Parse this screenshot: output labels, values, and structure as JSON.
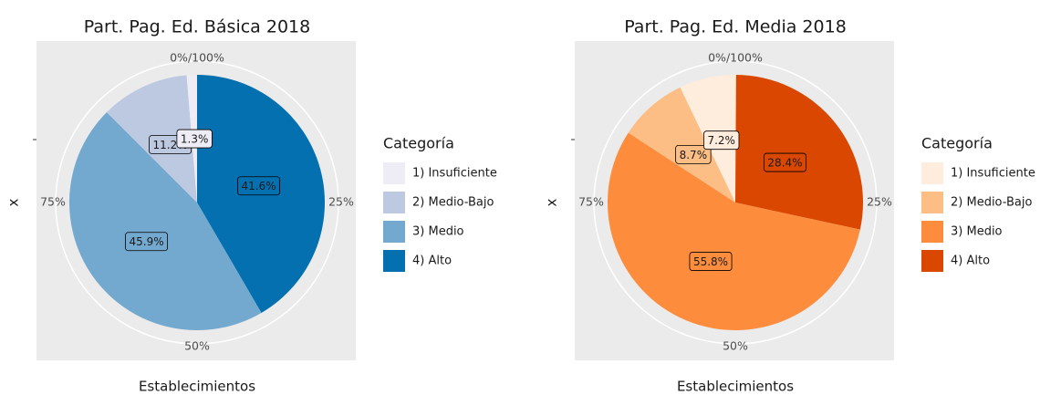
{
  "chart_data": [
    {
      "type": "pie",
      "title": "Part. Pag. Ed. Básica 2018",
      "xlabel": "Establecimientos",
      "ylabel": "x",
      "legend_title": "Categoría",
      "categories": [
        "1) Insuficiente",
        "2) Medio-Bajo",
        "3) Medio",
        "4) Alto"
      ],
      "values": [
        1.3,
        11.2,
        45.9,
        41.6
      ],
      "value_labels": [
        "1.3%",
        "11.2%",
        "45.9%",
        "41.6%"
      ],
      "colors": [
        "#eeedf5",
        "#bdc9e1",
        "#74a9cf",
        "#0570b0"
      ],
      "ylim": [
        0,
        100
      ],
      "yticks": [
        {
          "value": 0,
          "label": "0%/100%"
        },
        {
          "value": 25,
          "label": "25%"
        },
        {
          "value": 50,
          "label": "50%"
        },
        {
          "value": 75,
          "label": "75%"
        }
      ],
      "legend": "right"
    },
    {
      "type": "pie",
      "title": "Part. Pag. Ed. Media 2018",
      "xlabel": "Establecimientos",
      "ylabel": "x",
      "legend_title": "Categoría",
      "categories": [
        "1) Insuficiente",
        "2) Medio-Bajo",
        "3) Medio",
        "4) Alto"
      ],
      "values": [
        7.2,
        8.7,
        55.8,
        28.4
      ],
      "value_labels": [
        "7.2%",
        "8.7%",
        "55.8%",
        "28.4%"
      ],
      "colors": [
        "#feeddc",
        "#fdbe85",
        "#fd8d3c",
        "#d94701"
      ],
      "ylim": [
        0,
        100
      ],
      "yticks": [
        {
          "value": 0,
          "label": "0%/100%"
        },
        {
          "value": 25,
          "label": "25%"
        },
        {
          "value": 50,
          "label": "50%"
        },
        {
          "value": 75,
          "label": "75%"
        }
      ],
      "legend": "right"
    }
  ]
}
